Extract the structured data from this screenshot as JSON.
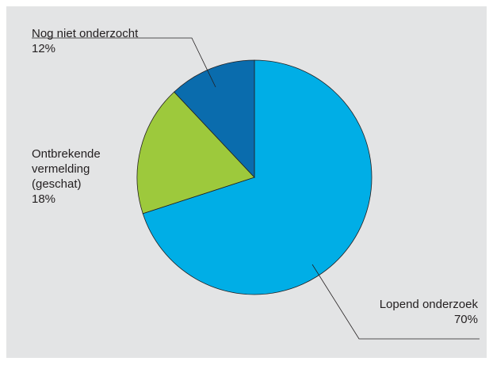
{
  "chart_data": {
    "type": "pie",
    "categories": [
      "Lopend onderzoek",
      "Ontbrekende vermelding (geschat)",
      "Nog niet onderzocht"
    ],
    "values": [
      70,
      18,
      12
    ],
    "value_labels": [
      "70%",
      "18%",
      "12%"
    ],
    "colors": [
      "#00aee6",
      "#9dc93c",
      "#0a6cad"
    ]
  }
}
